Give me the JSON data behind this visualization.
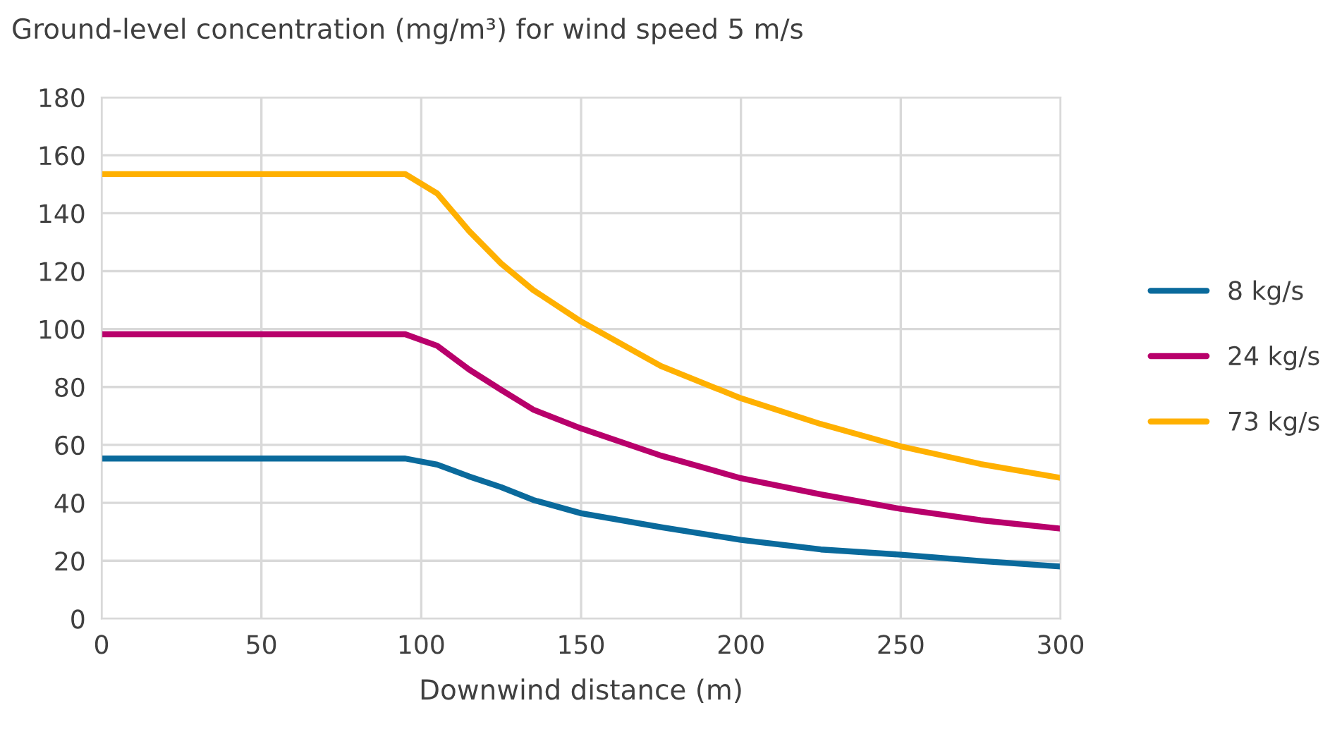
{
  "chart_data": {
    "type": "line",
    "title": "Ground-level concentration (mg/m³) for wind speed 5 m/s",
    "xlabel": "Downwind distance (m)",
    "x": [
      0,
      95,
      105,
      115,
      125,
      135,
      150,
      175,
      200,
      225,
      250,
      275,
      300
    ],
    "series": [
      {
        "name": "8 kg/s",
        "color": "#0a6a9c",
        "values": [
          55.3,
          55.3,
          53.2,
          49.1,
          45.4,
          41,
          36.4,
          31.6,
          27.2,
          23.9,
          22.1,
          19.9,
          18
        ]
      },
      {
        "name": "24 kg/s",
        "color": "#b8006b",
        "values": [
          98.2,
          98.2,
          94.2,
          86,
          79,
          72.2,
          65.7,
          56.3,
          48.5,
          42.9,
          37.9,
          34,
          31.1
        ]
      },
      {
        "name": "73 kg/s",
        "color": "#ffb000",
        "values": [
          153.5,
          153.5,
          146.8,
          133.8,
          122.6,
          113.5,
          102.6,
          87.2,
          76.1,
          67.2,
          59.5,
          53.4,
          48.6
        ]
      }
    ],
    "xlim": [
      0,
      300
    ],
    "xticks": [
      0,
      50,
      100,
      150,
      200,
      250,
      300
    ],
    "ylim": [
      0,
      180
    ],
    "yticks": [
      0,
      20,
      40,
      60,
      80,
      100,
      120,
      140,
      160,
      180
    ],
    "grid": true,
    "legend": "right",
    "marker": "none",
    "line_style": "solid"
  }
}
